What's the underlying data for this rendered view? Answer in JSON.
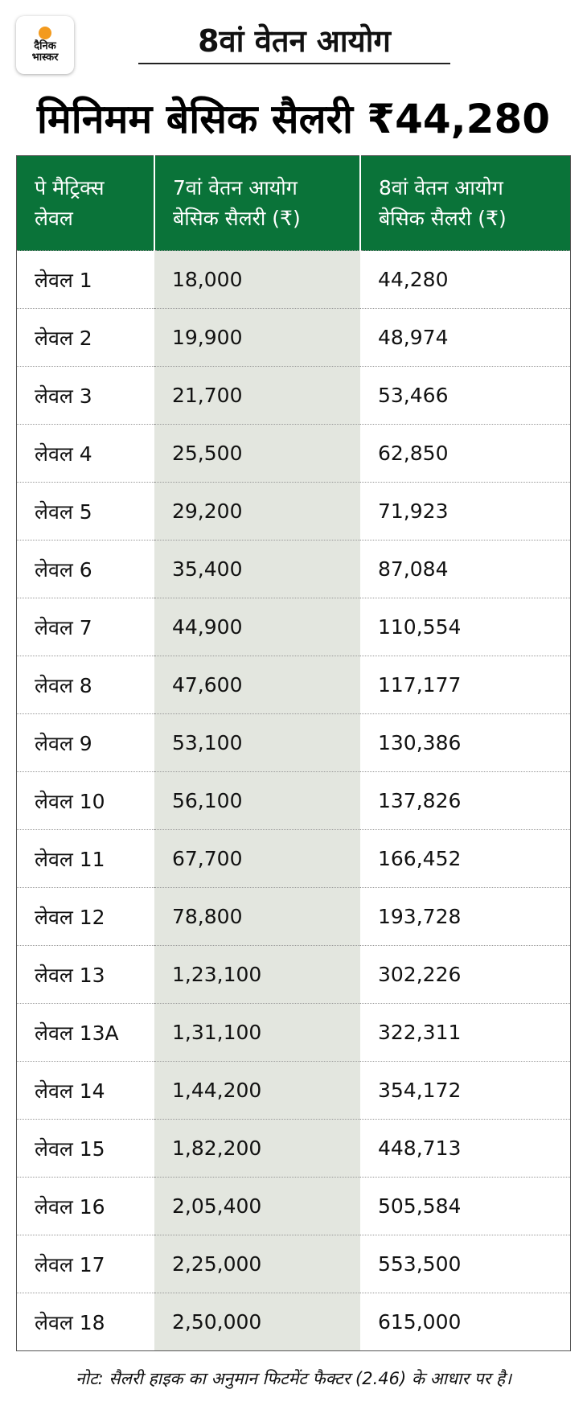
{
  "logo": {
    "line1": "दैनिक",
    "line2": "भास्कर",
    "color": "#f39a1e"
  },
  "kicker": "8वां वेतन आयोग",
  "headline": "मिनिमम बेसिक सैलरी ₹44,280",
  "colors": {
    "header_green": "#0a7339",
    "column_gray": "#e3e6df"
  },
  "table": {
    "headers": [
      "पे मैट्रिक्स लेवल",
      "7वां वेतन आयोग बेसिक सैलरी (₹)",
      "8वां वेतन आयोग बेसिक सैलरी (₹)"
    ],
    "rows": [
      [
        "लेवल 1",
        "18,000",
        "44,280"
      ],
      [
        "लेवल 2",
        "19,900",
        "48,974"
      ],
      [
        "लेवल 3",
        "21,700",
        "53,466"
      ],
      [
        "लेवल 4",
        "25,500",
        "62,850"
      ],
      [
        "लेवल 5",
        "29,200",
        "71,923"
      ],
      [
        "लेवल 6",
        "35,400",
        "87,084"
      ],
      [
        "लेवल 7",
        "44,900",
        "110,554"
      ],
      [
        "लेवल 8",
        "47,600",
        "117,177"
      ],
      [
        "लेवल 9",
        "53,100",
        "130,386"
      ],
      [
        "लेवल 10",
        "56,100",
        "137,826"
      ],
      [
        "लेवल 11",
        "67,700",
        "166,452"
      ],
      [
        "लेवल 12",
        "78,800",
        "193,728"
      ],
      [
        "लेवल 13",
        "1,23,100",
        "302,226"
      ],
      [
        "लेवल 13A",
        "1,31,100",
        "322,311"
      ],
      [
        "लेवल 14",
        "1,44,200",
        "354,172"
      ],
      [
        "लेवल 15",
        "1,82,200",
        "448,713"
      ],
      [
        "लेवल 16",
        "2,05,400",
        "505,584"
      ],
      [
        "लेवल 17",
        "2,25,000",
        "553,500"
      ],
      [
        "लेवल 18",
        "2,50,000",
        "615,000"
      ]
    ]
  },
  "note": "नोट: सैलरी हाइक का अनुमान फिटमेंट फैक्टर (2.46) के आधार पर है।"
}
